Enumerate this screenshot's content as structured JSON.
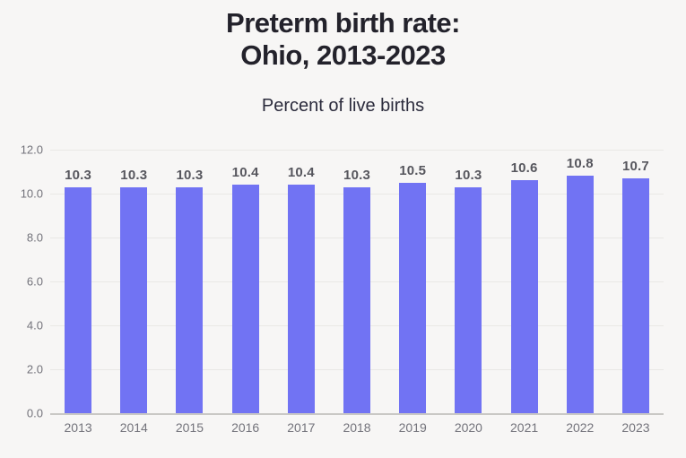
{
  "title": {
    "line1": "Preterm birth rate:",
    "line2": "Ohio, 2013-2023"
  },
  "subtitle": "Percent of live births",
  "colors": {
    "background": "#f7f6f5",
    "bar": "#7173f3",
    "gridline": "#e9e8e5",
    "axis_line": "#c9c8c5",
    "tick_label": "#73737b",
    "value_label": "#56565d",
    "title_text": "#23222b",
    "subtitle_text": "#2b2b3c"
  },
  "chart_data": {
    "type": "bar",
    "title": "Preterm birth rate: Ohio, 2013-2023",
    "subtitle": "Percent of live births",
    "categories": [
      "2013",
      "2014",
      "2015",
      "2016",
      "2017",
      "2018",
      "2019",
      "2020",
      "2021",
      "2022",
      "2023"
    ],
    "values": [
      10.3,
      10.3,
      10.3,
      10.4,
      10.4,
      10.3,
      10.5,
      10.3,
      10.6,
      10.8,
      10.7
    ],
    "value_labels": [
      "10.3",
      "10.3",
      "10.3",
      "10.4",
      "10.4",
      "10.3",
      "10.5",
      "10.3",
      "10.6",
      "10.8",
      "10.7"
    ],
    "xlabel": "",
    "ylabel": "Percent of live births",
    "ylim": [
      0,
      12
    ],
    "y_ticks": [
      "12.0",
      "10.0",
      "8.0",
      "6.0",
      "4.0",
      "2.0",
      "0.0"
    ],
    "grid": "horizontal",
    "legend": "none",
    "data_labels_position": "above-bar"
  }
}
